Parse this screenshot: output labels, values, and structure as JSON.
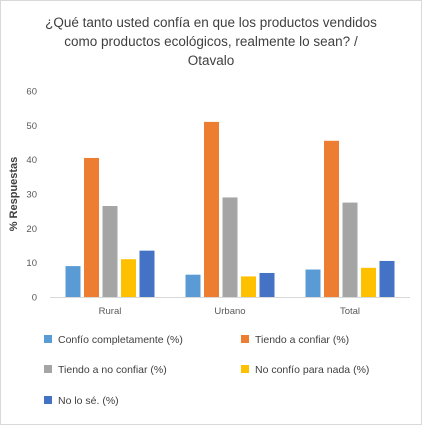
{
  "chart_data": {
    "type": "bar",
    "title_lines": [
      "¿Qué tanto usted confía en que los productos vendidos",
      "como productos ecológicos, realmente lo sean? /",
      "Otavalo"
    ],
    "ylabel": "% Respuestas",
    "xlabel": "",
    "ylim": [
      0,
      60
    ],
    "yticks": [
      0,
      10,
      20,
      30,
      40,
      50,
      60
    ],
    "grid": false,
    "legend_position": "bottom",
    "categories": [
      "Rural",
      "Urbano",
      "Total"
    ],
    "series": [
      {
        "name": "Confío completamente (%)",
        "color": "#5b9bd5",
        "values": [
          9,
          6.5,
          8
        ]
      },
      {
        "name": "Tiendo a confiar (%)",
        "color": "#ed7d31",
        "values": [
          40.5,
          51,
          45.5
        ]
      },
      {
        "name": "Tiendo a no confiar (%)",
        "color": "#a5a5a5",
        "values": [
          26.5,
          29,
          27.5
        ]
      },
      {
        "name": "No confío para nada (%)",
        "color": "#ffc000",
        "values": [
          11,
          6,
          8.5
        ]
      },
      {
        "name": "No lo sé. (%)",
        "color": "#4472c4",
        "values": [
          13.5,
          7,
          10.5
        ]
      }
    ]
  }
}
